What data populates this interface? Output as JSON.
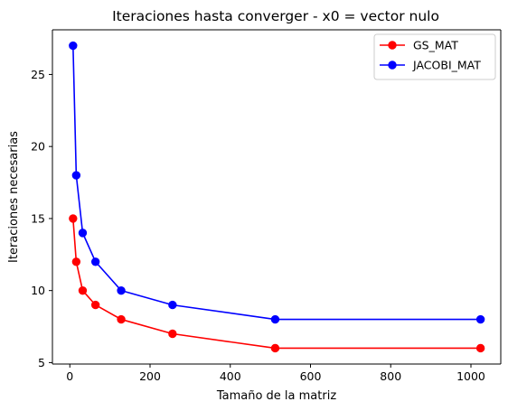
{
  "chart_data": {
    "type": "line",
    "title": "Iteraciones hasta converger - x0 = vector nulo",
    "xlabel": "Tamaño de la matriz",
    "ylabel": "Iteraciones necesarias",
    "xlim": [
      -43.4,
      1074.4
    ],
    "ylim": [
      4.9,
      28.1
    ],
    "xticks": [
      0,
      200,
      400,
      600,
      800,
      1000
    ],
    "yticks": [
      5,
      10,
      15,
      20,
      25
    ],
    "grid": false,
    "legend_position": "top-right",
    "x": [
      8,
      16,
      32,
      64,
      128,
      256,
      512,
      1024
    ],
    "series": [
      {
        "name": "GS_MAT",
        "color": "#ff0000",
        "values": [
          15,
          12,
          10,
          9,
          8,
          7,
          6,
          6
        ]
      },
      {
        "name": "JACOBI_MAT",
        "color": "#0000ff",
        "values": [
          27,
          18,
          14,
          12,
          10,
          9,
          8,
          8
        ]
      }
    ]
  }
}
